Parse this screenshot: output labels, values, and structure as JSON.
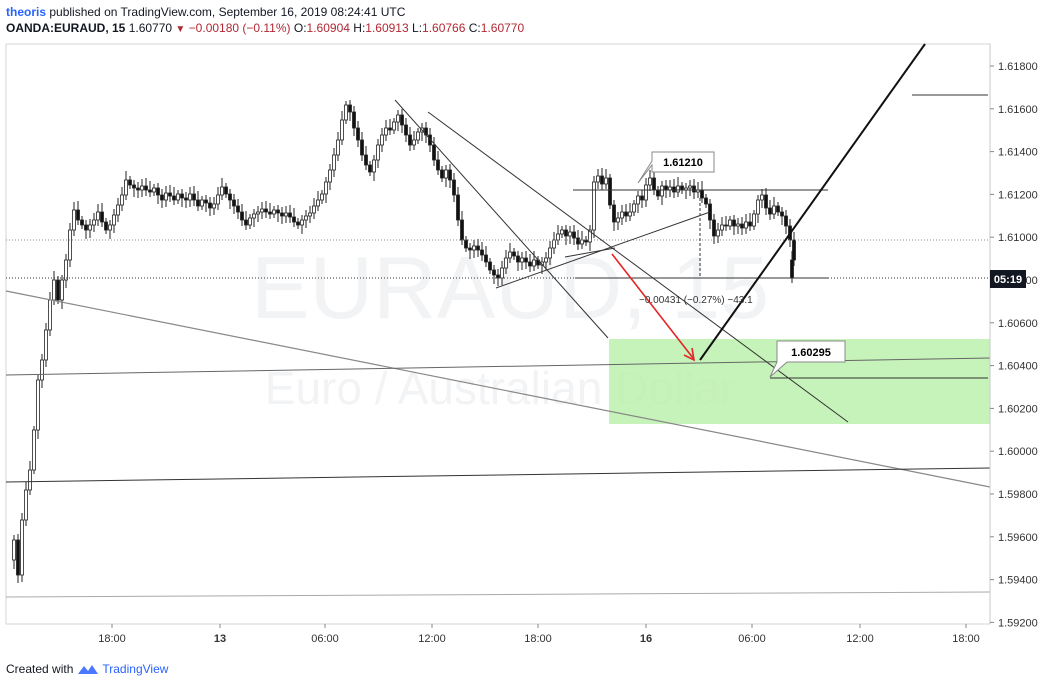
{
  "header": {
    "user": "theoris",
    "published": "published on TradingView.com, September 16, 2019 08:24:41 UTC",
    "symbol": "OANDA:EURAUD, 15",
    "price": "1.60770",
    "change": "−0.00180 (−0.11%)",
    "o_label": "O:",
    "o_value": "1.60904",
    "h_label": "H:",
    "h_value": "1.60913",
    "l_label": "L:",
    "l_value": "1.60766",
    "c_label": "C:",
    "c_value": "1.60770"
  },
  "watermark": {
    "symbol": "EURAUD, 15",
    "name": "Euro / Australian Dollar"
  },
  "y_axis": {
    "ticks": [
      "1.61800",
      "1.61600",
      "1.61400",
      "1.61200",
      "1.61000",
      "1.60800",
      "1.60600",
      "1.60400",
      "1.60200",
      "1.60000",
      "1.59800",
      "1.59600",
      "1.59400",
      "1.59200"
    ]
  },
  "x_axis": {
    "ticks": [
      "18:00",
      "13",
      "06:00",
      "12:00",
      "18:00",
      "16",
      "06:00",
      "12:00",
      "18:00"
    ]
  },
  "price_badge": "05:19",
  "annotations": {
    "label_high": "1.61210",
    "label_target": "1.60295",
    "measure": "−0.00431 (−0.27%) −43.1"
  },
  "colors": {
    "bull": "#555555",
    "bear": "#111111",
    "target_zone": "#b8f0a8",
    "arrow": "#e32626",
    "brand": "#2962ff",
    "change": "#b22833"
  },
  "footer": {
    "created_with": "Created with",
    "brand": "TradingView"
  }
}
